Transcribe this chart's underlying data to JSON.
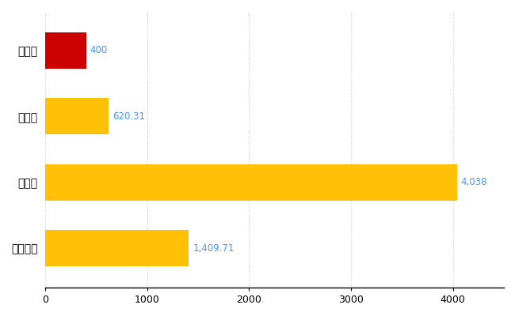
{
  "categories": [
    "全国平均",
    "県最大",
    "県平均",
    "長井市"
  ],
  "values": [
    1409.71,
    4038,
    620.31,
    400
  ],
  "bar_colors": [
    "#FFC107",
    "#FFC107",
    "#FFC107",
    "#CC0000"
  ],
  "value_labels": [
    "1,409.71",
    "4,038",
    "620.31",
    "400"
  ],
  "xlim": [
    0,
    4500
  ],
  "xticks": [
    0,
    1000,
    2000,
    3000,
    4000
  ],
  "xtick_labels": [
    "0",
    "1000",
    "2000",
    "3000",
    "4000"
  ],
  "grid_color": "#CCCCCC",
  "background_color": "#FFFFFF",
  "bar_height": 0.55,
  "label_color": "#4D94FF",
  "label_fontsize": 8.5,
  "tick_fontsize": 9,
  "ytick_fontsize": 10
}
